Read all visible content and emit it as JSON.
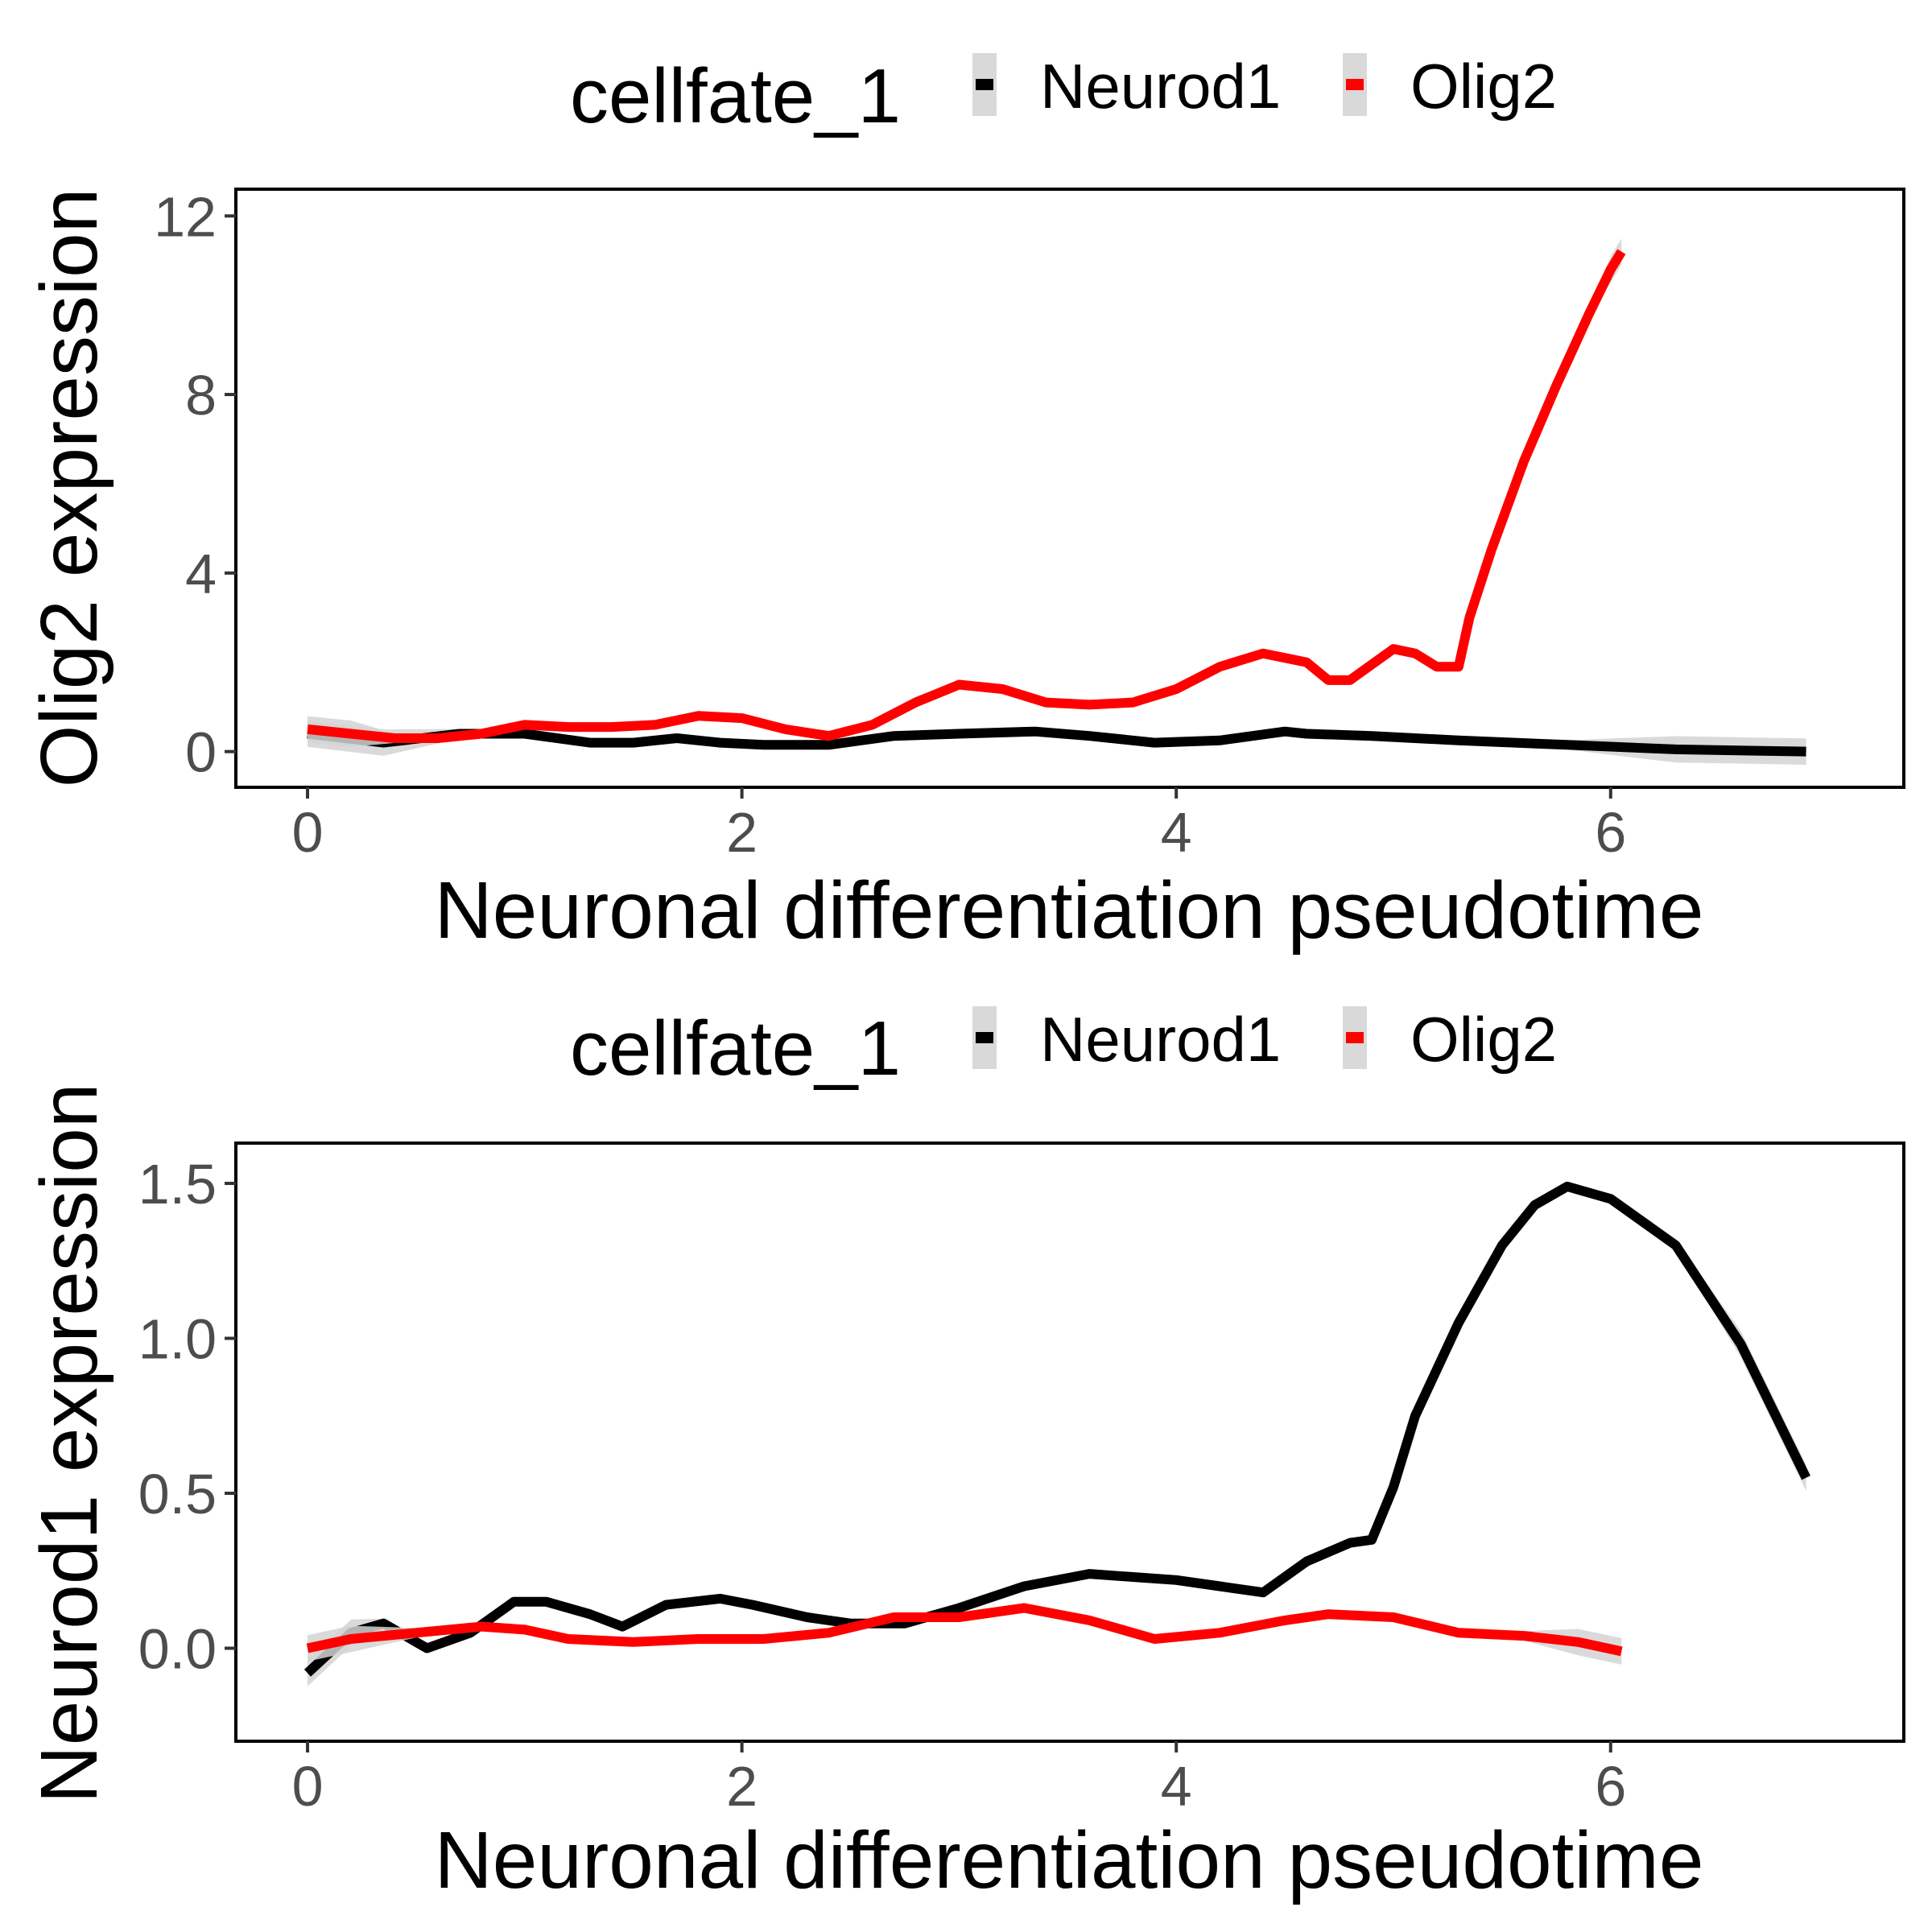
{
  "chart_data": [
    {
      "type": "line",
      "xlabel": "Neuronal differentiation pseudotime",
      "ylabel": "Olig2 expression",
      "xlim": [
        -0.33,
        7.35
      ],
      "ylim": [
        -0.8,
        12.6
      ],
      "xticks": [
        0,
        2,
        4,
        6
      ],
      "yticks": [
        0,
        4,
        8,
        12
      ],
      "legend": {
        "title": "cellfate_1",
        "position": "top",
        "entries": [
          "Neurod1",
          "Olig2"
        ]
      },
      "series": [
        {
          "name": "Neurod1",
          "color": "#000000",
          "x": [
            0,
            0.35,
            0.7,
            1.0,
            1.3,
            1.5,
            1.7,
            1.9,
            2.1,
            2.4,
            2.7,
            3.0,
            3.35,
            3.6,
            3.9,
            4.2,
            4.5,
            4.6,
            4.9,
            5.3,
            5.8,
            6.3,
            6.9
          ],
          "y": [
            0.4,
            0.2,
            0.4,
            0.4,
            0.2,
            0.2,
            0.3,
            0.2,
            0.15,
            0.15,
            0.35,
            0.4,
            0.45,
            0.35,
            0.2,
            0.25,
            0.45,
            0.4,
            0.35,
            0.25,
            0.15,
            0.05,
            0.0
          ]
        },
        {
          "name": "Olig2",
          "color": "#ff0000",
          "x": [
            0,
            0.2,
            0.4,
            0.6,
            0.8,
            1.0,
            1.2,
            1.4,
            1.6,
            1.8,
            2.0,
            2.2,
            2.4,
            2.6,
            2.8,
            3.0,
            3.2,
            3.4,
            3.6,
            3.8,
            4.0,
            4.2,
            4.4,
            4.6,
            4.7,
            4.8,
            5.0,
            5.1,
            5.2,
            5.3,
            5.35,
            5.45,
            5.6,
            5.75,
            5.9,
            6.0,
            6.05
          ],
          "y": [
            0.5,
            0.4,
            0.3,
            0.3,
            0.4,
            0.6,
            0.55,
            0.55,
            0.6,
            0.8,
            0.75,
            0.5,
            0.35,
            0.6,
            1.1,
            1.5,
            1.4,
            1.1,
            1.05,
            1.1,
            1.4,
            1.9,
            2.2,
            2.0,
            1.6,
            1.6,
            2.3,
            2.2,
            1.9,
            1.9,
            3.0,
            4.5,
            6.5,
            8.2,
            9.8,
            10.8,
            11.2
          ]
        }
      ]
    },
    {
      "type": "line",
      "xlabel": "Neuronal differentiation pseudotime",
      "ylabel": "Neurod1 expression",
      "xlim": [
        -0.33,
        7.35
      ],
      "ylim": [
        -0.3,
        1.63
      ],
      "xticks": [
        0,
        2,
        4,
        6
      ],
      "yticks": [
        "0.0",
        "0.5",
        "1.0",
        "1.5"
      ],
      "legend": {
        "title": "cellfate_1",
        "position": "top",
        "entries": [
          "Neurod1",
          "Olig2"
        ]
      },
      "series": [
        {
          "name": "Neurod1",
          "color": "#000000",
          "x": [
            0,
            0.2,
            0.35,
            0.55,
            0.75,
            0.95,
            1.1,
            1.3,
            1.45,
            1.65,
            1.9,
            2.05,
            2.3,
            2.5,
            2.75,
            3.0,
            3.3,
            3.6,
            3.8,
            4.0,
            4.2,
            4.4,
            4.6,
            4.8,
            4.9,
            5.0,
            5.1,
            5.3,
            5.5,
            5.65,
            5.8,
            6.0,
            6.3,
            6.6,
            6.9
          ],
          "y": [
            -0.08,
            0.05,
            0.08,
            0.0,
            0.05,
            0.15,
            0.15,
            0.11,
            0.07,
            0.14,
            0.16,
            0.14,
            0.1,
            0.08,
            0.08,
            0.13,
            0.2,
            0.24,
            0.23,
            0.22,
            0.2,
            0.18,
            0.28,
            0.34,
            0.35,
            0.52,
            0.75,
            1.05,
            1.3,
            1.43,
            1.49,
            1.45,
            1.3,
            0.98,
            0.55
          ]
        },
        {
          "name": "Olig2",
          "color": "#ff0000",
          "x": [
            0,
            0.2,
            0.5,
            0.8,
            1.0,
            1.2,
            1.5,
            1.8,
            2.1,
            2.4,
            2.7,
            3.0,
            3.3,
            3.6,
            3.9,
            4.2,
            4.5,
            4.7,
            5.0,
            5.3,
            5.6,
            5.85,
            6.05
          ],
          "y": [
            0.0,
            0.03,
            0.05,
            0.07,
            0.06,
            0.03,
            0.02,
            0.03,
            0.03,
            0.05,
            0.1,
            0.1,
            0.13,
            0.09,
            0.03,
            0.05,
            0.09,
            0.11,
            0.1,
            0.05,
            0.04,
            0.02,
            -0.01
          ]
        }
      ]
    }
  ]
}
